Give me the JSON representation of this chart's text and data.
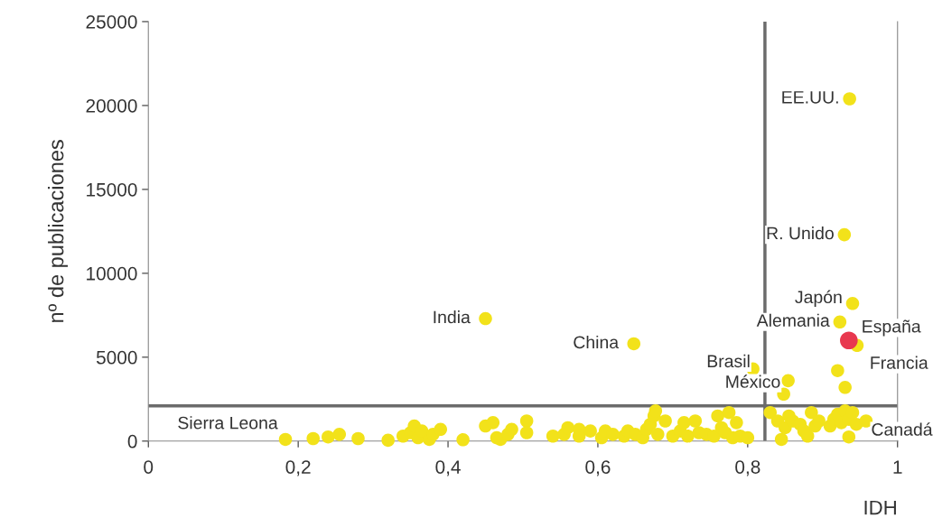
{
  "chart_data": {
    "type": "scatter",
    "xlabel": "IDH",
    "ylabel": "nº de publicaciones",
    "xlim": [
      0,
      1
    ],
    "ylim": [
      0,
      25000
    ],
    "xticks": [
      0,
      {
        "value": 0.2,
        "label": "0,2"
      },
      {
        "value": 0.4,
        "label": "0,4"
      },
      {
        "value": 0.6,
        "label": "0,6"
      },
      {
        "value": 0.8,
        "label": "0,8"
      },
      1
    ],
    "yticks": [
      0,
      5000,
      10000,
      15000,
      20000,
      25000
    ],
    "grid": false,
    "marker": "circle",
    "series": [
      {
        "color": "#f2e21a",
        "x": [
          0.936,
          0.929,
          0.94,
          0.923,
          0.946,
          0.92,
          0.93,
          0.807,
          0.854,
          0.848,
          0.45,
          0.648,
          0.183,
          0.22,
          0.24,
          0.255,
          0.28,
          0.32,
          0.34,
          0.35,
          0.355,
          0.36,
          0.365,
          0.375,
          0.38,
          0.39,
          0.42,
          0.45,
          0.46,
          0.465,
          0.47,
          0.48,
          0.485,
          0.505,
          0.505,
          0.54,
          0.555,
          0.56,
          0.575,
          0.575,
          0.59,
          0.605,
          0.61,
          0.62,
          0.635,
          0.64,
          0.65,
          0.66,
          0.665,
          0.67,
          0.675,
          0.677,
          0.68,
          0.69,
          0.7,
          0.71,
          0.715,
          0.72,
          0.73,
          0.735,
          0.745,
          0.755,
          0.76,
          0.765,
          0.77,
          0.775,
          0.78,
          0.785,
          0.79,
          0.8,
          0.83,
          0.84,
          0.845,
          0.85,
          0.855,
          0.86,
          0.87,
          0.875,
          0.88,
          0.885,
          0.89,
          0.895,
          0.91,
          0.915,
          0.92,
          0.925,
          0.93,
          0.935,
          0.935,
          0.94,
          0.945,
          0.958
        ],
        "values": [
          20400,
          12300,
          8200,
          7100,
          5700,
          4200,
          3200,
          4300,
          3600,
          2800,
          7300,
          5800,
          100,
          150,
          250,
          400,
          150,
          50,
          300,
          500,
          900,
          200,
          600,
          100,
          400,
          700,
          80,
          900,
          1100,
          200,
          100,
          400,
          700,
          1200,
          500,
          300,
          400,
          800,
          700,
          300,
          600,
          200,
          600,
          400,
          300,
          600,
          400,
          200,
          700,
          1000,
          1500,
          1800,
          400,
          1200,
          300,
          600,
          1100,
          300,
          1200,
          500,
          400,
          300,
          1500,
          800,
          500,
          1700,
          200,
          1100,
          300,
          200,
          1700,
          1200,
          100,
          800,
          1500,
          1200,
          1000,
          600,
          300,
          1700,
          900,
          1200,
          900,
          1300,
          1600,
          1100,
          1800,
          1300,
          250,
          1700,
          1000,
          1200
        ]
      },
      {
        "color": "#e8384f",
        "x": [
          0.935
        ],
        "values": [
          6000
        ]
      }
    ],
    "ref_lines": [
      {
        "axis": "x",
        "value": 0.823,
        "color": "#6b6b6b"
      },
      {
        "axis": "y",
        "value": 2100,
        "color": "#6b6b6b"
      }
    ],
    "annotations": [
      {
        "text": "EE.UU.",
        "x": 0.936,
        "y": 20400
      },
      {
        "text": "R. Unido",
        "x": 0.929,
        "y": 12300
      },
      {
        "text": "Japón",
        "x": 0.94,
        "y": 8200
      },
      {
        "text": "Alemania",
        "x": 0.923,
        "y": 7100
      },
      {
        "text": "España",
        "x": 0.935,
        "y": 6000
      },
      {
        "text": "Francia",
        "x": 0.946,
        "y": 5700
      },
      {
        "text": "Brasil",
        "x": 0.807,
        "y": 4300
      },
      {
        "text": "México",
        "x": 0.854,
        "y": 3600
      },
      {
        "text": "India",
        "x": 0.45,
        "y": 7300
      },
      {
        "text": "China",
        "x": 0.648,
        "y": 5800
      },
      {
        "text": "Sierra Leona",
        "x": 0.183,
        "y": 100
      },
      {
        "text": "Canadá",
        "x": 0.958,
        "y": 1200
      }
    ]
  }
}
